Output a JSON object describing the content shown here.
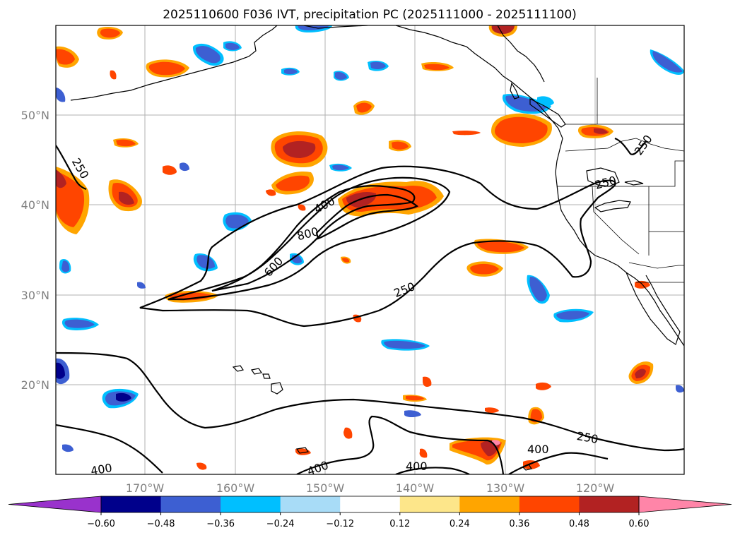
{
  "title": "2025110600 F036 IVT, precipitation PC (2025111000 - 2025111100)",
  "lat_labels": [
    "50°N",
    "40°N",
    "30°N",
    "20°N"
  ],
  "lon_labels": [
    "170°W",
    "160°W",
    "150°W",
    "140°W",
    "130°W",
    "120°W"
  ],
  "contour_labels": {
    "c250_west": "250",
    "c400_north": "400",
    "c800": "800",
    "c600": "600",
    "c250_south": "250",
    "c250_east": "250",
    "c250_nw": "250",
    "c400_south1": "400",
    "c400_south2": "400",
    "c400_south3": "400",
    "c250_far_south": "250",
    "c400_se": "400"
  },
  "colorbar": {
    "ticks": [
      "−0.60",
      "−0.48",
      "−0.36",
      "−0.24",
      "−0.12",
      "0.12",
      "0.24",
      "0.36",
      "0.48",
      "0.60"
    ],
    "colors": [
      "#9932cc",
      "#00008b",
      "#3d5fd2",
      "#00bfff",
      "#a8dcf7",
      "#ffffff",
      "#fde68a",
      "#ffa500",
      "#ff4500",
      "#b22222",
      "#ff85a8"
    ]
  },
  "colors": {
    "orange": "#ffa500",
    "red_orange": "#ff4500",
    "dark_red": "#b22222",
    "pink": "#ff85a8",
    "yellow": "#fde68a",
    "dark_blue": "#00008b",
    "blue": "#3d5fd2",
    "light_blue": "#00bfff",
    "pale_blue": "#a8dcf7"
  }
}
